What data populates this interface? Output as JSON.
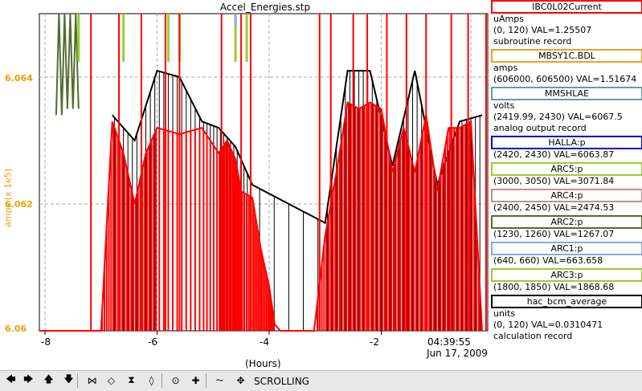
{
  "chart_data": {
    "type": "line",
    "title": "Accel_Energies.stp",
    "ylabel": "amps (x 1e5)",
    "xlabel": "(Hours)",
    "xlim": [
      -8.1,
      -0.1
    ],
    "ylim": [
      6.06,
      6.065
    ],
    "yticks": [
      "6.06",
      "6.062",
      "6.064"
    ],
    "xticks": [
      "-8",
      "-6",
      "-4",
      "-2"
    ],
    "x_positions": [
      -8,
      -6,
      -4,
      -2
    ],
    "timestamp": "04:39:55",
    "date": "Jun 17, 2009",
    "grid": true,
    "series": [
      {
        "name": "IBC0L02Current",
        "color": "#ff0000",
        "x": [
          -8.1,
          -7.9,
          -7.6,
          -7.2,
          -7.0,
          -6.8,
          -6.6,
          -6.4,
          -6.2,
          -6.0,
          -5.6,
          -5.2,
          -4.9,
          -4.75,
          -4.6,
          -4.5,
          -4.3,
          -4.15,
          -4.0,
          -3.9,
          -3.8,
          -3.6,
          -3.4,
          -3.2,
          -3.0,
          -2.8,
          -2.6,
          -2.4,
          -2.2,
          -2.0,
          -1.8,
          -1.6,
          -1.4,
          -1.2,
          -1.0,
          -0.8,
          -0.6,
          -0.4,
          -0.2
        ],
        "y": [
          6.06,
          6.06,
          6.06,
          6.06,
          6.06,
          6.0633,
          6.0628,
          6.062,
          6.0628,
          6.0632,
          6.0631,
          6.0632,
          6.0628,
          6.063,
          6.0627,
          6.0622,
          6.0621,
          6.0613,
          6.0607,
          6.0601,
          6.06,
          6.06,
          6.06,
          6.06,
          6.0615,
          6.0625,
          6.0636,
          6.0635,
          6.0636,
          6.0635,
          6.0625,
          6.0632,
          6.0625,
          6.0634,
          6.0622,
          6.0632,
          6.0632,
          6.0633,
          6.06
        ]
      },
      {
        "name": "hac_bcm_average",
        "color": "#000000",
        "x": [
          -6.8,
          -6.4,
          -6.0,
          -5.6,
          -5.2,
          -4.9,
          -4.6,
          -4.3,
          -3.0,
          -2.6,
          -2.2,
          -1.8,
          -1.4,
          -1.0,
          -0.6,
          -0.2
        ],
        "y": [
          6.0634,
          6.063,
          6.0641,
          6.064,
          6.0633,
          6.0632,
          6.0629,
          6.0623,
          6.0617,
          6.0641,
          6.0641,
          6.0626,
          6.0641,
          6.0623,
          6.0633,
          6.0634
        ]
      },
      {
        "name": "ARC2:p",
        "color": "#556b2f",
        "x": [
          -7.8,
          -7.75,
          -7.7,
          -7.65,
          -7.6,
          -7.55,
          -7.5,
          -7.45,
          -7.4
        ],
        "y": [
          6.0634,
          6.065,
          6.0634,
          6.065,
          6.0635,
          6.065,
          6.0635,
          6.065,
          6.0635
        ]
      },
      {
        "name": "ARC3:p",
        "color": "#99cc33",
        "x": [
          -7.4,
          -6.6,
          -5.8,
          -5.6,
          -4.6,
          -4.4
        ],
        "y": [
          6.065,
          6.065,
          6.065,
          6.065,
          6.065,
          6.065
        ]
      },
      {
        "name": "ARC1:p",
        "color": "#88aadd",
        "x": [
          -4.6
        ],
        "y": [
          6.065
        ]
      }
    ]
  },
  "legend": [
    {
      "title": "IBC0L02Current",
      "border": "#ff0000",
      "lines": [
        "uAmps",
        "(0, 120) VAL=1.25507",
        "subroutine record"
      ]
    },
    {
      "title": "MBSY1C.BDL",
      "border": "#f0a020",
      "lines": [
        "amps",
        "(606000, 606500) VAL=1.51674"
      ]
    },
    {
      "title": "MMSHLAE",
      "border": "#5f9ea0",
      "lines": [
        "volts",
        "(2419.99, 2430) VAL=6067.5",
        "analog output record"
      ]
    },
    {
      "title": "HALLA:p",
      "border": "#0000cc",
      "lines": [
        "(2420, 2430) VAL=6063.87"
      ]
    },
    {
      "title": "ARC5:p",
      "border": "#99cc33",
      "lines": [
        "(3000, 3050) VAL=3071.84"
      ]
    },
    {
      "title": "ARC4:p",
      "border": "#c09090",
      "lines": [
        "(2400, 2450) VAL=2474.53"
      ]
    },
    {
      "title": "ARC2:p",
      "border": "#556b2f",
      "lines": [
        "(1230, 1260) VAL=1267.07"
      ]
    },
    {
      "title": "ARC1:p",
      "border": "#88aadd",
      "lines": [
        "(640, 660) VAL=663.658"
      ]
    },
    {
      "title": "ARC3:p",
      "border": "#99cc33",
      "lines": [
        "(1800, 1850) VAL=1868.68"
      ]
    },
    {
      "title": "hac_bcm_average",
      "border": "#000000",
      "lines": [
        "units",
        "(0, 120) VAL=0.0310471",
        "calculation record"
      ]
    }
  ],
  "toolbar": {
    "status": "SCROLLING",
    "buttons": [
      {
        "name": "scroll-left-icon",
        "glyph": "🡄"
      },
      {
        "name": "scroll-right-icon",
        "glyph": "🡆"
      },
      {
        "name": "scroll-up-icon",
        "glyph": "🡅"
      },
      {
        "name": "scroll-down-icon",
        "glyph": "🡇"
      },
      {
        "name": "zoom-in-horizontal-icon",
        "glyph": "⋈"
      },
      {
        "name": "zoom-out-horizontal-icon",
        "glyph": "◇"
      },
      {
        "name": "zoom-in-vertical-icon",
        "glyph": "⧗"
      },
      {
        "name": "zoom-out-vertical-icon",
        "glyph": "◊"
      },
      {
        "name": "zoom-reset-icon",
        "glyph": "⊙"
      },
      {
        "name": "zoom-add-icon",
        "glyph": "✚"
      },
      {
        "name": "scale-mode-icon",
        "glyph": "⏦"
      },
      {
        "name": "move-cursor-icon",
        "glyph": "✥"
      }
    ]
  }
}
